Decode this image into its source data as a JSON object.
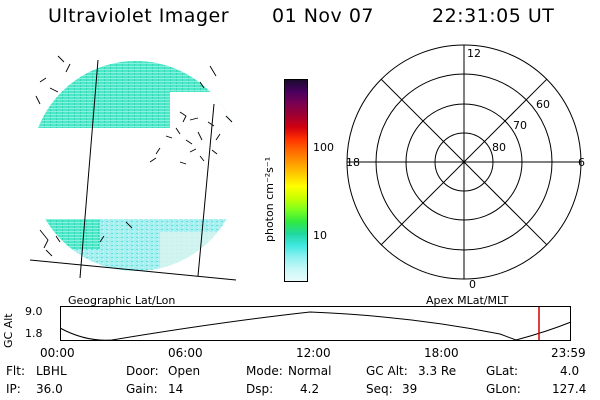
{
  "header": {
    "instrument": "Ultraviolet Imager",
    "date": "01 Nov 07",
    "time": "22:31:05 UT"
  },
  "colorbar": {
    "unit_label": "photon cm⁻²s⁻¹",
    "ticks": [
      "100",
      "10"
    ],
    "colors": [
      "#1a0a2e",
      "#4a0060",
      "#7a0050",
      "#a00030",
      "#d00010",
      "#ff3000",
      "#ff6a00",
      "#ff9a00",
      "#ffcc00",
      "#ffff00",
      "#c8ff00",
      "#7aff20",
      "#30e840",
      "#20d8a0",
      "#40e8e0",
      "#90f0f0",
      "#c8f8f8",
      "#e8fafa"
    ]
  },
  "left_panel": {
    "caption": "Geographic Lat/Lon"
  },
  "right_panel": {
    "caption": "Apex MLat/MLT",
    "mlt_labels": {
      "top": "12",
      "left": "18",
      "right": "6",
      "bottom": "0"
    },
    "lat_labels": [
      "60",
      "70",
      "80"
    ]
  },
  "altitude_plot": {
    "ylabel": "GC Alt",
    "y_ticks": [
      "9.0",
      "1.8"
    ],
    "x_ticks": [
      "00:00",
      "06:00",
      "12:00",
      "18:00",
      "23:59"
    ],
    "current_marker_color": "#d00000"
  },
  "status": {
    "filter_label": "Flt:",
    "filter_value": "LBHL",
    "door_label": "Door:",
    "door_value": "Open",
    "mode_label": "Mode:",
    "mode_value": "Normal",
    "gcalt_label": "GC Alt:",
    "gcalt_value": "3.3 Re",
    "glat_label": "GLat:",
    "glat_value": "4.0",
    "ip_label": "IP:",
    "ip_value": "36.0",
    "gain_label": "Gain:",
    "gain_value": "14",
    "dsp_label": "Dsp:",
    "dsp_value": "4.2",
    "seq_label": "Seq:",
    "seq_value": "39",
    "glon_label": "GLon:",
    "glon_value": "127.4"
  }
}
